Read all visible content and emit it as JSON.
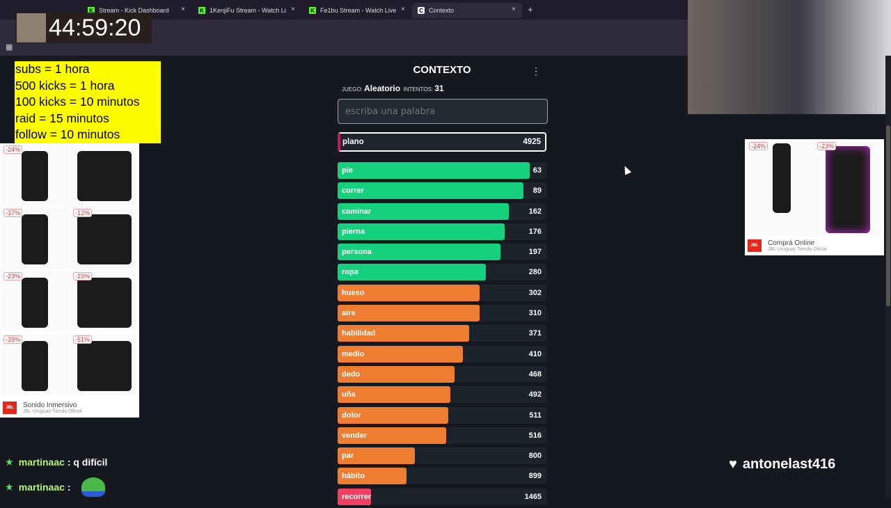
{
  "browser": {
    "tabs": [
      {
        "label": "Stream - Kick Dashboard",
        "close": "×"
      },
      {
        "label": "1KenjiFu Stream - Watch Li",
        "close": "×"
      },
      {
        "label": "Fe1bu Stream - Watch Live",
        "close": "×"
      },
      {
        "label": "Contexto",
        "close": "×"
      }
    ],
    "new_tab": "+"
  },
  "overlay": {
    "timer": "44:59:20",
    "rules": [
      "subs = 1 hora",
      "500 kicks = 1 hora",
      "100 kicks = 10 minutos",
      "raid = 15 minutos",
      "follow = 10 minutos"
    ],
    "follower": "antonelast416",
    "chat": [
      {
        "user": "martinaac",
        "text": ": q difícil"
      },
      {
        "user": "martinaac",
        "text": ":"
      }
    ]
  },
  "ad_left": {
    "discounts": [
      "-24%",
      "",
      "-37%",
      "-12%",
      "-23%",
      "-23%",
      "-39%",
      "-51%"
    ],
    "title": "Sonido Inmersivo",
    "subtitle": "JBL Uruguay Tienda Oficial",
    "logo": "JBL"
  },
  "ad_right": {
    "discounts": [
      "-24%",
      "-23%"
    ],
    "title": "Comprá Online",
    "subtitle": "JBL Uruguay Tienda Oficial",
    "logo": "JBL"
  },
  "game": {
    "title": "CONTEXTO",
    "menu": "⋮",
    "juego_label": "JUEGO:",
    "juego": "Aleatorio",
    "intentos_label": "INTENTOS:",
    "intentos": "31",
    "placeholder": "escriba una palabra",
    "current": {
      "word": "plano",
      "rank": "4925"
    },
    "colors": {
      "green": "#15d07c",
      "orange": "#ef7d31",
      "red": "#ef4060"
    },
    "guesses": [
      {
        "word": "pie",
        "rank": 63,
        "fill": 0.92,
        "color": "green"
      },
      {
        "word": "correr",
        "rank": 89,
        "fill": 0.89,
        "color": "green"
      },
      {
        "word": "caminar",
        "rank": 162,
        "fill": 0.82,
        "color": "green"
      },
      {
        "word": "pierna",
        "rank": 176,
        "fill": 0.8,
        "color": "green"
      },
      {
        "word": "persona",
        "rank": 197,
        "fill": 0.78,
        "color": "green"
      },
      {
        "word": "ropa",
        "rank": 280,
        "fill": 0.71,
        "color": "green"
      },
      {
        "word": "hueso",
        "rank": 302,
        "fill": 0.68,
        "color": "orange"
      },
      {
        "word": "aire",
        "rank": 310,
        "fill": 0.68,
        "color": "orange"
      },
      {
        "word": "habilidad",
        "rank": 371,
        "fill": 0.63,
        "color": "orange"
      },
      {
        "word": "medio",
        "rank": 410,
        "fill": 0.6,
        "color": "orange"
      },
      {
        "word": "dedo",
        "rank": 468,
        "fill": 0.56,
        "color": "orange"
      },
      {
        "word": "uña",
        "rank": 492,
        "fill": 0.54,
        "color": "orange"
      },
      {
        "word": "dolor",
        "rank": 511,
        "fill": 0.53,
        "color": "orange"
      },
      {
        "word": "vender",
        "rank": 516,
        "fill": 0.52,
        "color": "orange"
      },
      {
        "word": "par",
        "rank": 800,
        "fill": 0.37,
        "color": "orange"
      },
      {
        "word": "hábito",
        "rank": 899,
        "fill": 0.33,
        "color": "orange"
      },
      {
        "word": "recorrer",
        "rank": 1465,
        "fill": 0.16,
        "color": "red"
      }
    ]
  }
}
